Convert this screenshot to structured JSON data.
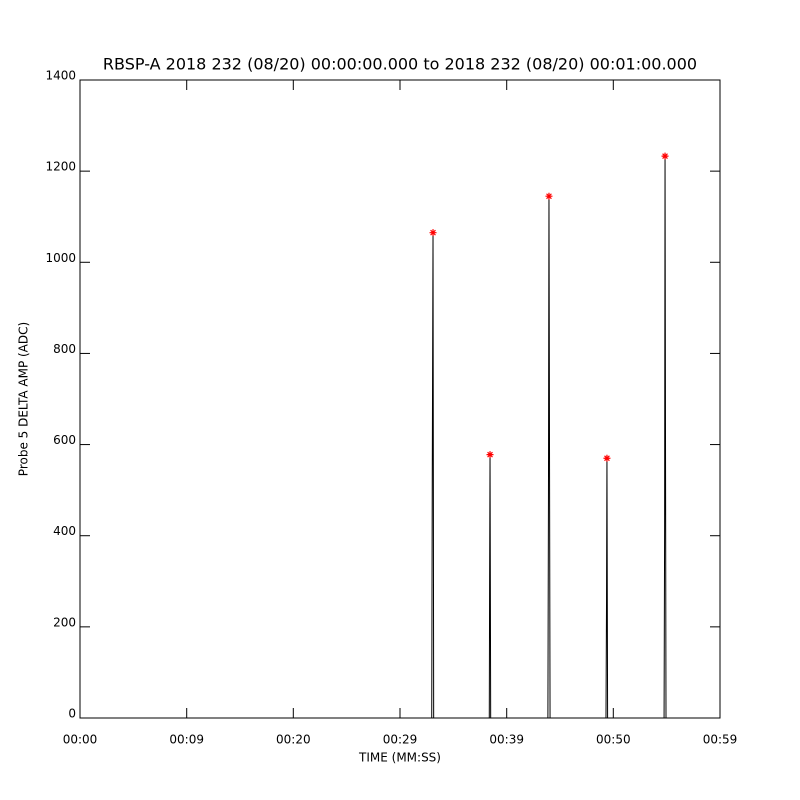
{
  "chart_data": {
    "type": "line",
    "title": "RBSP-A 2018 232 (08/20) 00:00:00.000 to 2018 232 (08/20) 00:01:00.000",
    "x_label": "TIME (MM:SS)",
    "y_label": "Probe 5 DELTA AMP (ADC)",
    "xlim": [
      0,
      59.5
    ],
    "xticks": [
      {
        "value": 0,
        "label": "00:00"
      },
      {
        "value": 9.92,
        "label": "00:09"
      },
      {
        "value": 19.83,
        "label": "00:20"
      },
      {
        "value": 29.75,
        "label": "00:29"
      },
      {
        "value": 39.67,
        "label": "00:39"
      },
      {
        "value": 49.58,
        "label": "00:50"
      },
      {
        "value": 59.5,
        "label": "00:59"
      }
    ],
    "ylim": [
      0,
      1400
    ],
    "yticks": [
      0,
      200,
      400,
      600,
      800,
      1000,
      1200,
      1400
    ],
    "series": [
      {
        "color": "#000000",
        "x": [
          28.5,
          32.7,
          32.75,
          32.82,
          32.88,
          38.05,
          38.08,
          38.12,
          38.18,
          43.5,
          43.55,
          43.6,
          43.65,
          43.7,
          48.9,
          48.95,
          48.99,
          49.05,
          54.3,
          54.35,
          54.39,
          54.43,
          54.48,
          58.9
        ],
        "values": [
          0,
          0,
          535,
          1065,
          0,
          0,
          290,
          578,
          0,
          0,
          470,
          1145,
          590,
          0,
          0,
          255,
          570,
          0,
          0,
          415,
          1233,
          650,
          0,
          0
        ]
      }
    ],
    "peaks": {
      "color": "#ff0000",
      "x": [
        32.82,
        38.12,
        43.6,
        48.99,
        54.39
      ],
      "values": [
        1065,
        578,
        1145,
        570,
        1233
      ]
    }
  }
}
